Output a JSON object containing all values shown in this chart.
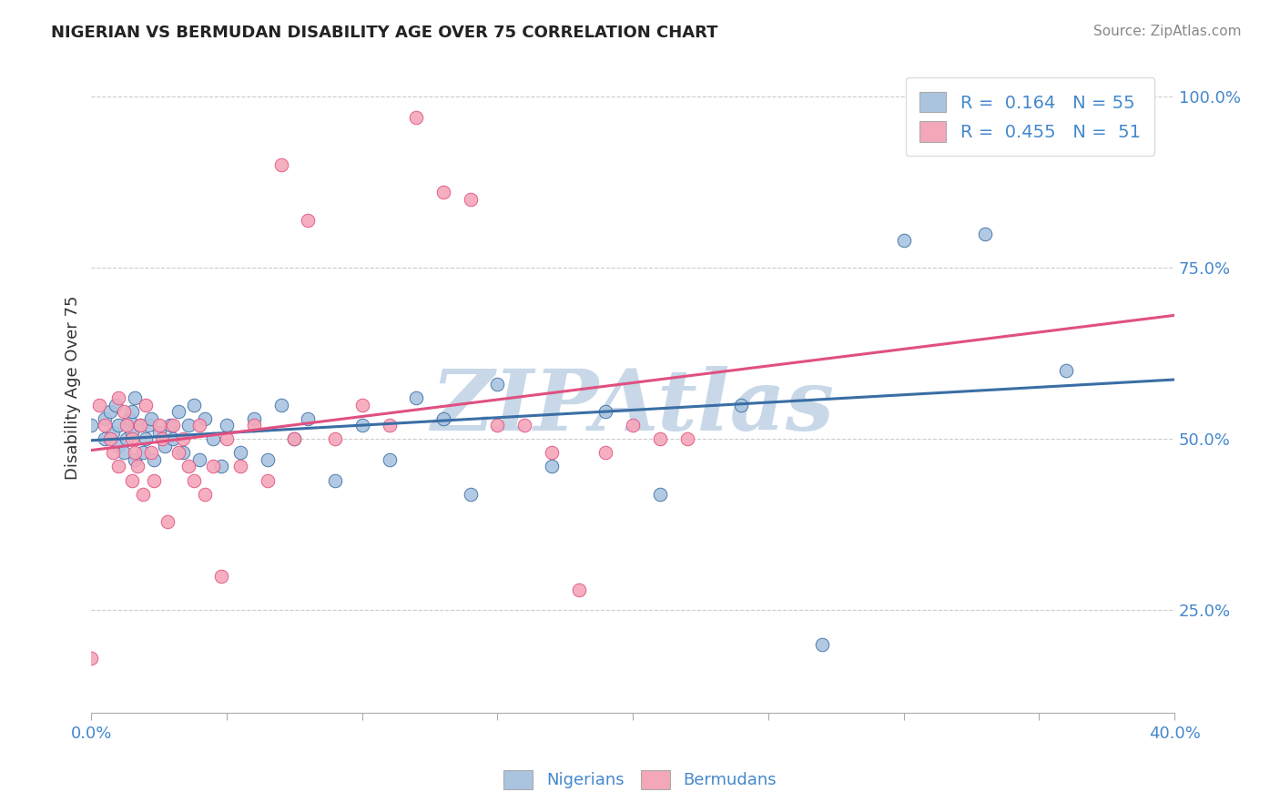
{
  "title": "NIGERIAN VS BERMUDAN DISABILITY AGE OVER 75 CORRELATION CHART",
  "source": "Source: ZipAtlas.com",
  "ylabel": "Disability Age Over 75",
  "xlim": [
    0.0,
    0.4
  ],
  "ylim": [
    0.1,
    1.05
  ],
  "yticks": [
    0.25,
    0.5,
    0.75,
    1.0
  ],
  "ytick_labels": [
    "25.0%",
    "50.0%",
    "75.0%",
    "100.0%"
  ],
  "nigerian_R": 0.164,
  "nigerian_N": 55,
  "bermudan_R": 0.455,
  "bermudan_N": 51,
  "nigerian_color": "#aac4e0",
  "bermudan_color": "#f4a7b9",
  "nigerian_line_color": "#3a6ea5",
  "bermudan_line_color": "#e05080",
  "watermark": "ZIPAtlas",
  "watermark_color": "#c8d8e8",
  "background_color": "#ffffff",
  "grid_color": "#cccccc",
  "nigerian_x": [
    0.0,
    0.005,
    0.005,
    0.007,
    0.008,
    0.009,
    0.01,
    0.01,
    0.012,
    0.013,
    0.014,
    0.015,
    0.015,
    0.016,
    0.016,
    0.018,
    0.019,
    0.02,
    0.021,
    0.022,
    0.023,
    0.025,
    0.027,
    0.029,
    0.03,
    0.032,
    0.034,
    0.036,
    0.038,
    0.04,
    0.042,
    0.045,
    0.048,
    0.05,
    0.055,
    0.06,
    0.065,
    0.07,
    0.075,
    0.08,
    0.09,
    0.1,
    0.11,
    0.12,
    0.13,
    0.14,
    0.15,
    0.17,
    0.19,
    0.21,
    0.24,
    0.27,
    0.3,
    0.33,
    0.36
  ],
  "nigerian_y": [
    0.52,
    0.5,
    0.53,
    0.54,
    0.51,
    0.55,
    0.49,
    0.52,
    0.48,
    0.5,
    0.53,
    0.51,
    0.54,
    0.47,
    0.56,
    0.52,
    0.48,
    0.5,
    0.52,
    0.53,
    0.47,
    0.51,
    0.49,
    0.52,
    0.5,
    0.54,
    0.48,
    0.52,
    0.55,
    0.47,
    0.53,
    0.5,
    0.46,
    0.52,
    0.48,
    0.53,
    0.47,
    0.55,
    0.5,
    0.53,
    0.44,
    0.52,
    0.47,
    0.56,
    0.53,
    0.42,
    0.58,
    0.46,
    0.54,
    0.42,
    0.55,
    0.2,
    0.79,
    0.8,
    0.6
  ],
  "bermudan_x": [
    0.0,
    0.003,
    0.005,
    0.007,
    0.008,
    0.01,
    0.01,
    0.012,
    0.013,
    0.015,
    0.015,
    0.016,
    0.017,
    0.018,
    0.019,
    0.02,
    0.022,
    0.023,
    0.025,
    0.026,
    0.028,
    0.03,
    0.032,
    0.034,
    0.036,
    0.038,
    0.04,
    0.042,
    0.045,
    0.048,
    0.05,
    0.055,
    0.06,
    0.065,
    0.07,
    0.075,
    0.08,
    0.09,
    0.1,
    0.11,
    0.12,
    0.13,
    0.14,
    0.15,
    0.16,
    0.17,
    0.18,
    0.19,
    0.2,
    0.21,
    0.22
  ],
  "bermudan_y": [
    0.18,
    0.55,
    0.52,
    0.5,
    0.48,
    0.56,
    0.46,
    0.54,
    0.52,
    0.5,
    0.44,
    0.48,
    0.46,
    0.52,
    0.42,
    0.55,
    0.48,
    0.44,
    0.52,
    0.5,
    0.38,
    0.52,
    0.48,
    0.5,
    0.46,
    0.44,
    0.52,
    0.42,
    0.46,
    0.3,
    0.5,
    0.46,
    0.52,
    0.44,
    0.9,
    0.5,
    0.82,
    0.5,
    0.55,
    0.52,
    0.97,
    0.86,
    0.85,
    0.52,
    0.52,
    0.48,
    0.28,
    0.48,
    0.52,
    0.5,
    0.5
  ]
}
